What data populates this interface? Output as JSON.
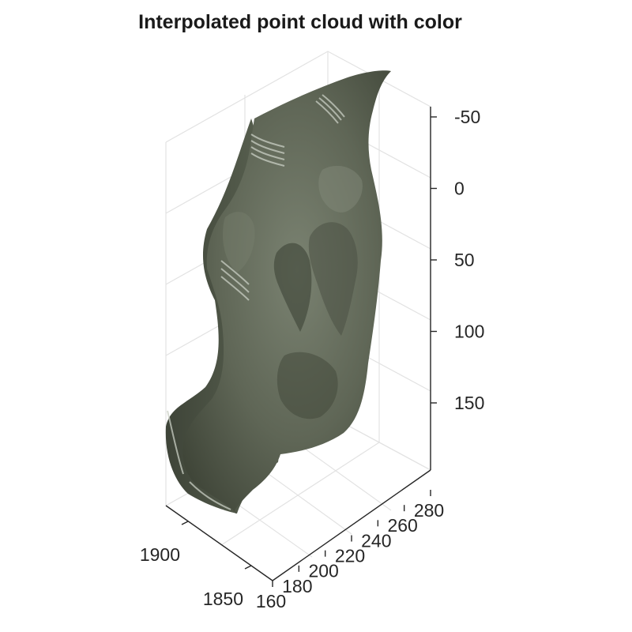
{
  "chart_data": {
    "type": "scatter3d",
    "title": "Interpolated point cloud with color",
    "xlabel": "",
    "ylabel": "",
    "zlabel": "",
    "x_axis": {
      "ticks": [
        1850,
        1900
      ],
      "lim": [
        1830,
        1920
      ]
    },
    "y_axis": {
      "ticks": [
        160,
        180,
        200,
        220,
        240,
        260,
        280
      ],
      "lim": [
        150,
        290
      ]
    },
    "z_axis": {
      "ticks": [
        -50,
        0,
        50,
        100,
        150
      ],
      "lim": [
        -100,
        200
      ],
      "direction": "reverse"
    },
    "grid": true,
    "surface": {
      "description": "interpolated colored point cloud of a sculpted face",
      "color": "#5f6656"
    }
  },
  "colors": {
    "surface_base": "#5f6656",
    "surface_dark": "#3f4538",
    "surface_light": "#7e8676",
    "grid": "#e2e2e2",
    "axis": "#262626"
  }
}
